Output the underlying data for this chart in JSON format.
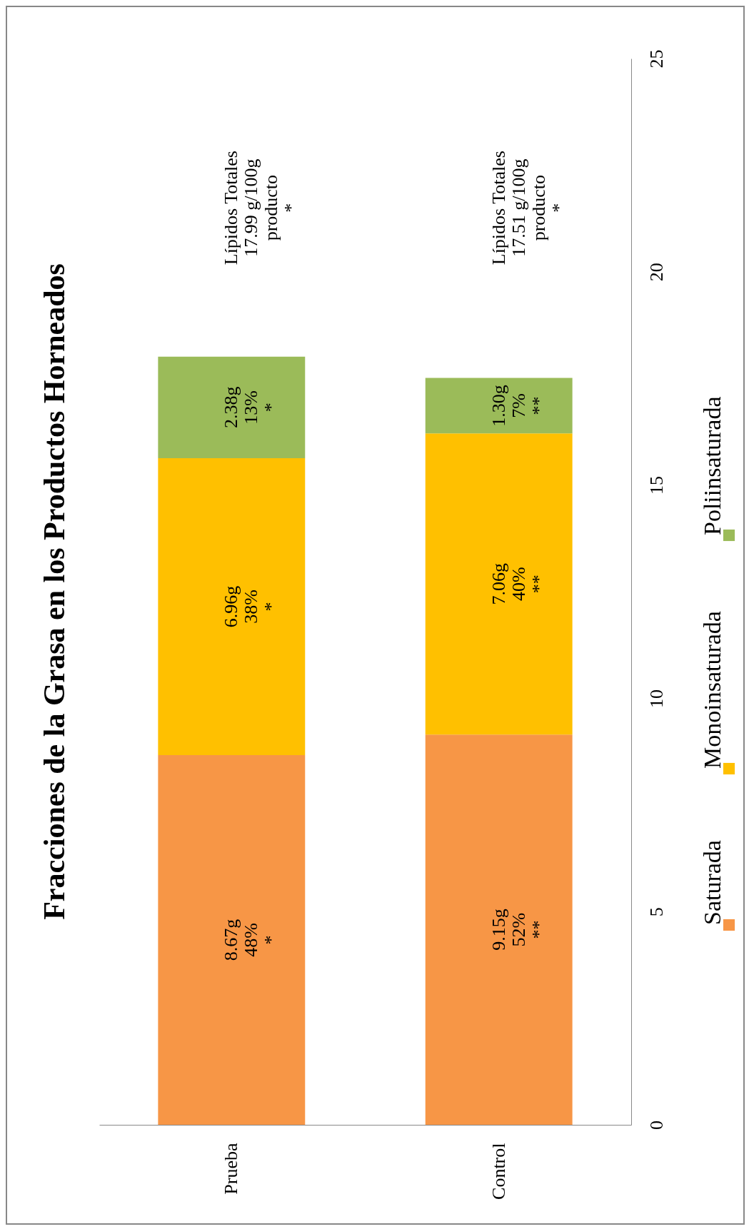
{
  "chart_data": {
    "type": "bar",
    "title": "Fracciones de la Grasa en los Productos Horneados",
    "categories": [
      "Prueba",
      "Control"
    ],
    "stacked": true,
    "series": [
      {
        "name": "Saturada",
        "color": "#f79646",
        "values": [
          8.67,
          9.15
        ],
        "value_labels": [
          "8.67g\n48%\n*",
          "9.15g\n52%\n**"
        ]
      },
      {
        "name": "Monoinsaturada",
        "color": "#ffc000",
        "values": [
          6.96,
          7.06
        ],
        "value_labels": [
          "6.96g\n38%\n*",
          "7.06g\n40%\n**"
        ]
      },
      {
        "name": "Poliinsaturada",
        "color": "#9bbb59",
        "values": [
          2.38,
          1.3
        ],
        "value_labels": [
          "2.38g\n13%\n*",
          "1.30g\n7%\n**"
        ]
      }
    ],
    "ylim": [
      0,
      25
    ],
    "yticks": [
      0,
      5,
      10,
      15,
      20,
      25
    ],
    "grid": false,
    "legend": "right",
    "annotations": [
      "Lípidos Totales\n17.99 g/100g\nproducto\n*",
      "Lípidos Totales\n17.51 g/100g\nproducto\n*"
    ]
  }
}
